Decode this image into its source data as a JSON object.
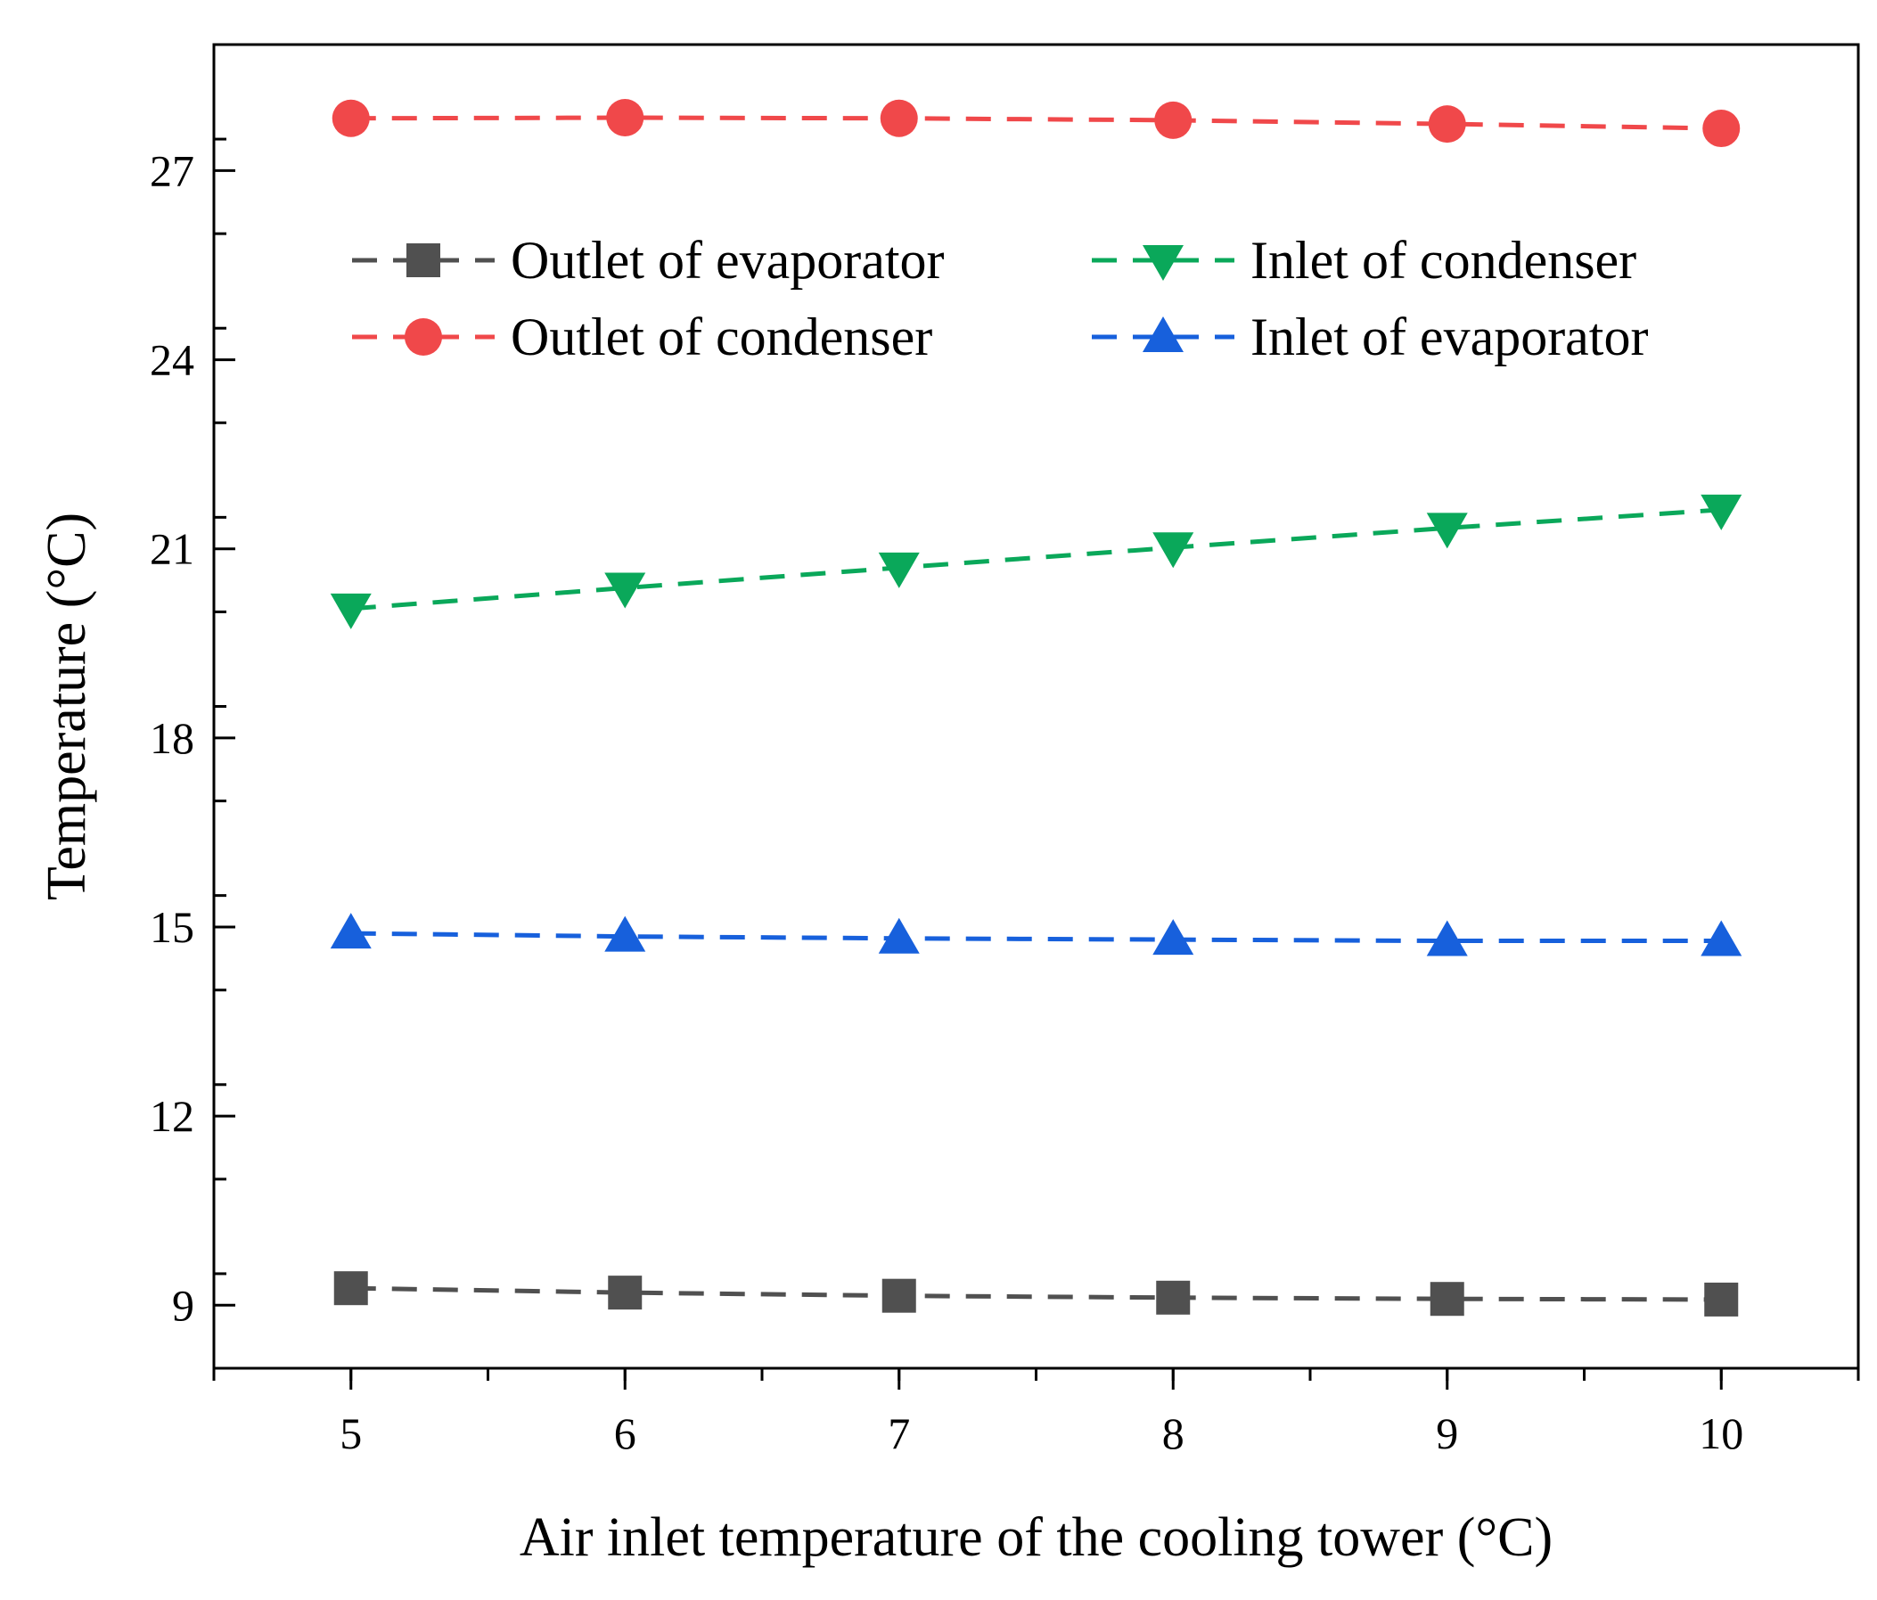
{
  "chart_data": {
    "type": "line",
    "title": "",
    "xlabel": "Air inlet temperature of the cooling tower (°C)",
    "ylabel": "Temperature (°C)",
    "x": [
      5,
      6,
      7,
      8,
      9,
      10
    ],
    "xlim": [
      4.5,
      10.5
    ],
    "ylim": [
      8,
      29
    ],
    "xticks": [
      5,
      6,
      7,
      8,
      9,
      10
    ],
    "yticks": [
      9,
      12,
      15,
      18,
      21,
      24,
      27
    ],
    "grid": false,
    "legend_position": "upper-center",
    "series": [
      {
        "name": "Outlet of evaporator",
        "marker": "square",
        "color": "#505050",
        "values": [
          9.27,
          9.2,
          9.15,
          9.12,
          9.1,
          9.09
        ]
      },
      {
        "name": "Outlet of condenser",
        "marker": "circle",
        "color": "#f0484a",
        "values": [
          27.83,
          27.84,
          27.83,
          27.8,
          27.74,
          27.67
        ]
      },
      {
        "name": "Inlet of condenser",
        "marker": "triangle-down",
        "color": "#0aa85a",
        "values": [
          20.05,
          20.38,
          20.7,
          21.02,
          21.33,
          21.62
        ]
      },
      {
        "name": "Inlet of evaporator",
        "marker": "triangle-up",
        "color": "#1760dc",
        "values": [
          14.9,
          14.85,
          14.82,
          14.8,
          14.78,
          14.78
        ]
      }
    ]
  }
}
